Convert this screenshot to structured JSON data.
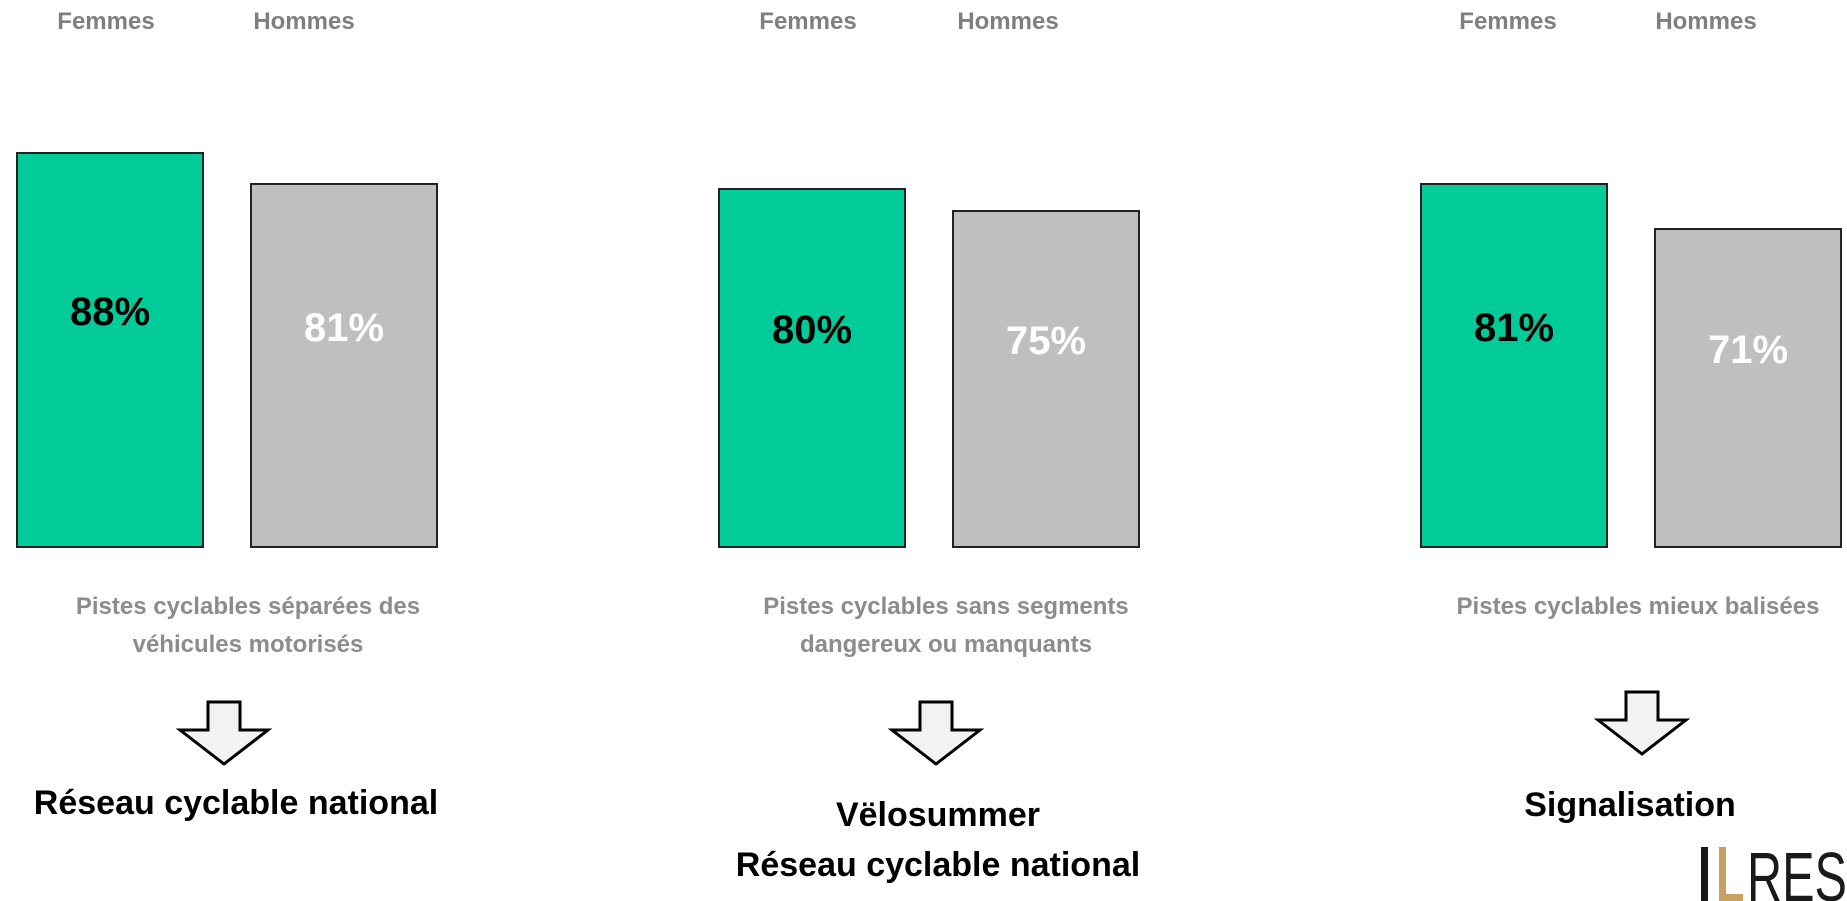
{
  "colors": {
    "femmes": "#00cc99",
    "hommes": "#bfbfbf"
  },
  "chart_data": [
    {
      "type": "bar",
      "categories": [
        "Femmes",
        "Hommes"
      ],
      "values": [
        88,
        81
      ],
      "value_labels": [
        "88%",
        "81%"
      ],
      "caption": [
        "Pistes cyclables séparées des",
        "véhicules motorisés"
      ],
      "result": [
        "Réseau cyclable national"
      ]
    },
    {
      "type": "bar",
      "categories": [
        "Femmes",
        "Hommes"
      ],
      "values": [
        80,
        75
      ],
      "value_labels": [
        "80%",
        "75%"
      ],
      "caption": [
        "Pistes cyclables sans segments",
        "dangereux ou manquants"
      ],
      "result": [
        "Vëlosummer",
        "Réseau cyclable national"
      ]
    },
    {
      "type": "bar",
      "categories": [
        "Femmes",
        "Hommes"
      ],
      "values": [
        81,
        71
      ],
      "value_labels": [
        "81%",
        "71%"
      ],
      "caption": [
        "Pistes cyclables mieux balisées"
      ],
      "result": [
        "Signalisation"
      ]
    }
  ],
  "logo": {
    "text": "ILRES",
    "icon": "ilres-logo"
  }
}
